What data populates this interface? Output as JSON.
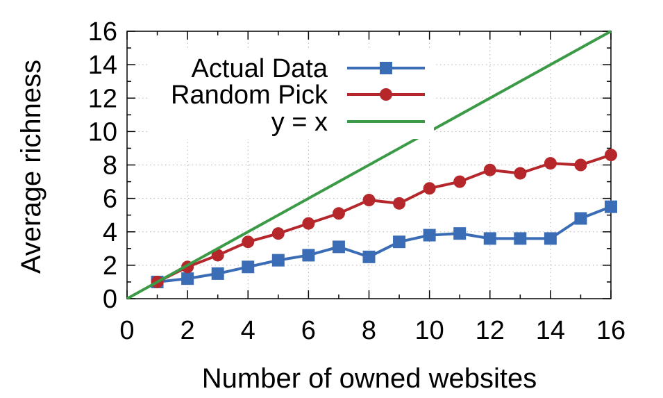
{
  "chart_data": {
    "type": "line",
    "xlabel": "Number of owned websites",
    "ylabel": "Average richness",
    "xlim": [
      0,
      16
    ],
    "ylim": [
      0,
      16
    ],
    "xticks": [
      0,
      2,
      4,
      6,
      8,
      10,
      12,
      14,
      16
    ],
    "yticks": [
      0,
      2,
      4,
      6,
      8,
      10,
      12,
      14,
      16
    ],
    "grid": true,
    "legend_position": "top-left",
    "series": [
      {
        "name": "Actual Data",
        "marker": "square",
        "color": "#3a6db5",
        "x": [
          1,
          2,
          3,
          4,
          5,
          6,
          7,
          8,
          9,
          10,
          11,
          12,
          13,
          14,
          15,
          16
        ],
        "y": [
          1.0,
          1.2,
          1.5,
          1.9,
          2.3,
          2.6,
          3.1,
          2.5,
          3.4,
          3.8,
          3.9,
          3.6,
          3.6,
          3.6,
          4.8,
          5.5
        ]
      },
      {
        "name": "Random Pick",
        "marker": "circle",
        "color": "#b5272b",
        "x": [
          1,
          2,
          3,
          4,
          5,
          6,
          7,
          8,
          9,
          10,
          11,
          12,
          13,
          14,
          15,
          16
        ],
        "y": [
          1.0,
          1.9,
          2.6,
          3.4,
          3.9,
          4.5,
          5.1,
          5.9,
          5.7,
          6.6,
          7.0,
          7.7,
          7.5,
          8.1,
          8.0,
          8.6
        ]
      },
      {
        "name": "y = x",
        "marker": "none",
        "color": "#3a9a46",
        "x": [
          0,
          16
        ],
        "y": [
          0,
          16
        ]
      }
    ]
  }
}
